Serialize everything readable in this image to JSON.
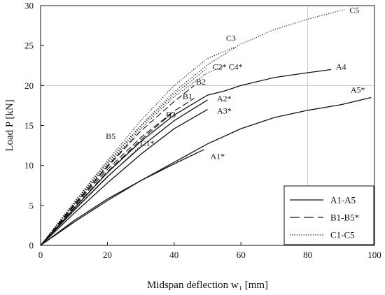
{
  "chart_data": {
    "type": "line",
    "xlabel": "Midspan deflection w₁ [mm]",
    "ylabel": "Load P [kN]",
    "xlim": [
      0,
      100
    ],
    "ylim": [
      0,
      30
    ],
    "xticks": [
      0,
      20,
      40,
      60,
      80,
      100
    ],
    "yticks": [
      0,
      5,
      10,
      15,
      20,
      25,
      30
    ],
    "grid": "major only at x=80 and y=20",
    "legend": {
      "position": "bottom-right",
      "entries": [
        {
          "label": "A1-A5",
          "style": "solid"
        },
        {
          "label": "B1-B5*",
          "style": "dashed"
        },
        {
          "label": "C1-C5",
          "style": "dotted"
        }
      ]
    },
    "colors": {
      "line": "#111111",
      "grid": "#c8c8c8",
      "axis": "#111111"
    },
    "series": [
      {
        "name": "A1*",
        "group": "A",
        "style": "solid",
        "x": [
          0,
          10,
          20,
          30,
          40,
          49
        ],
        "y": [
          0,
          3.1,
          5.8,
          8.1,
          10.2,
          12.0
        ]
      },
      {
        "name": "A2*",
        "group": "A",
        "style": "solid",
        "x": [
          0,
          10,
          20,
          30,
          40,
          50
        ],
        "y": [
          0,
          4.4,
          8.6,
          12.3,
          15.6,
          18.2
        ]
      },
      {
        "name": "A3*",
        "group": "A",
        "style": "solid",
        "x": [
          0,
          10,
          20,
          30,
          40,
          50
        ],
        "y": [
          0,
          4.0,
          7.8,
          11.4,
          14.6,
          17.0
        ]
      },
      {
        "name": "A4",
        "group": "A",
        "style": "solid",
        "x": [
          0,
          10,
          20,
          30,
          40,
          50,
          55,
          60,
          70,
          80,
          87
        ],
        "y": [
          0,
          4.6,
          9.1,
          13.0,
          16.3,
          18.8,
          19.3,
          20.0,
          21.0,
          21.6,
          22.0
        ]
      },
      {
        "name": "A5*",
        "group": "A",
        "style": "solid",
        "x": [
          0,
          10,
          20,
          30,
          40,
          50,
          60,
          70,
          80,
          90,
          99
        ],
        "y": [
          0,
          2.9,
          5.6,
          8.1,
          10.4,
          12.7,
          14.6,
          16.0,
          16.9,
          17.6,
          18.5
        ]
      },
      {
        "name": "B1",
        "group": "B",
        "style": "dashed",
        "x": [
          0,
          10,
          20,
          30,
          40,
          46
        ],
        "y": [
          0,
          4.9,
          9.5,
          13.5,
          16.8,
          18.4
        ]
      },
      {
        "name": "B2",
        "group": "B",
        "style": "dashed",
        "x": [
          0,
          10,
          20,
          30,
          40,
          46
        ],
        "y": [
          0,
          5.1,
          9.9,
          14.3,
          18.0,
          20.0
        ]
      },
      {
        "name": "B3",
        "group": "B",
        "style": "dashed",
        "x": [
          0,
          10,
          20,
          30,
          39
        ],
        "y": [
          0,
          4.7,
          9.2,
          13.2,
          16.4
        ]
      },
      {
        "name": "B5",
        "group": "B",
        "style": "dashed",
        "x": [
          0,
          10,
          20,
          28
        ],
        "y": [
          0,
          5.0,
          9.8,
          13.4
        ]
      },
      {
        "name": "C1*",
        "group": "C",
        "style": "dotted",
        "x": [
          0,
          10,
          20,
          30
        ],
        "y": [
          0,
          4.3,
          8.5,
          12.5
        ]
      },
      {
        "name": "C2*",
        "group": "C",
        "style": "dotted",
        "x": [
          0,
          10,
          20,
          30,
          40,
          50
        ],
        "y": [
          0,
          5.2,
          10.2,
          14.9,
          18.9,
          22.2
        ]
      },
      {
        "name": "C3",
        "group": "C",
        "style": "dotted",
        "x": [
          0,
          10,
          20,
          30,
          40,
          50,
          58
        ],
        "y": [
          0,
          5.4,
          10.6,
          15.6,
          20.0,
          23.4,
          24.8
        ]
      },
      {
        "name": "C4*",
        "group": "C",
        "style": "dotted",
        "x": [
          0,
          10,
          20,
          30,
          40,
          50,
          55
        ],
        "y": [
          0,
          5.1,
          10.0,
          14.6,
          18.6,
          21.6,
          22.4
        ]
      },
      {
        "name": "C5",
        "group": "C",
        "style": "dotted",
        "x": [
          0,
          10,
          20,
          30,
          40,
          50,
          60,
          70,
          80,
          91
        ],
        "y": [
          0,
          5.3,
          10.4,
          15.0,
          19.2,
          22.6,
          25.2,
          27.0,
          28.3,
          29.5
        ]
      }
    ],
    "annotations": [
      {
        "text": "C5",
        "x": 94,
        "y": 29.1
      },
      {
        "text": "C3",
        "x": 57,
        "y": 25.6
      },
      {
        "text": "C2* C4*",
        "x": 56,
        "y": 22.0
      },
      {
        "text": "A4",
        "x": 90,
        "y": 22.0
      },
      {
        "text": "B2",
        "x": 48,
        "y": 20.1
      },
      {
        "text": "B1",
        "x": 44,
        "y": 18.3
      },
      {
        "text": "A2*",
        "x": 55,
        "y": 18.0
      },
      {
        "text": "A5*",
        "x": 95,
        "y": 19.1
      },
      {
        "text": "A3*",
        "x": 55,
        "y": 16.5
      },
      {
        "text": "B3",
        "x": 39,
        "y": 16.0
      },
      {
        "text": "B5",
        "x": 21,
        "y": 13.3
      },
      {
        "text": "C1*",
        "x": 32,
        "y": 12.4
      },
      {
        "text": "A1*",
        "x": 53,
        "y": 10.8
      }
    ]
  }
}
